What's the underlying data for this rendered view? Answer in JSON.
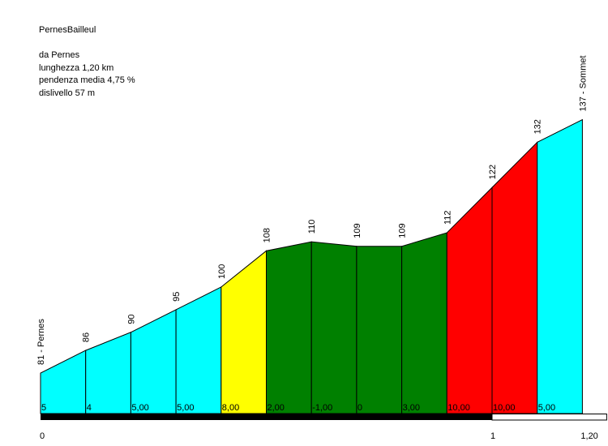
{
  "info": {
    "title": "PernesBailleul",
    "start": "da Pernes",
    "length": "lunghezza 1,20 km",
    "gradient": "pendenza media 4,75 %",
    "climb": "dislivello 57 m"
  },
  "chart_data": {
    "type": "area",
    "xlabel": "",
    "ylabel": "",
    "x_unit": "km",
    "segment_km": 0.1,
    "x_ticks": [
      "0",
      "1",
      "1,20"
    ],
    "altitudes": [
      81,
      86,
      90,
      95,
      100,
      108,
      110,
      109,
      109,
      112,
      122,
      132,
      137
    ],
    "altitude_labels": [
      "81 - Pernes",
      "86",
      "90",
      "95",
      "100",
      "108",
      "110",
      "109",
      "109",
      "112",
      "122",
      "132",
      "137 - Sommet"
    ],
    "slopes": [
      "5",
      "4",
      "5,00",
      "5,00",
      "8,00",
      "2,00",
      "-1,00",
      "0",
      "3,00",
      "10,00",
      "10,00",
      "5,00"
    ],
    "segment_colors": [
      "#00ffff",
      "#00ffff",
      "#00ffff",
      "#00ffff",
      "#ffff00",
      "#008000",
      "#008000",
      "#008000",
      "#008000",
      "#ff0000",
      "#ff0000",
      "#00ffff"
    ]
  }
}
